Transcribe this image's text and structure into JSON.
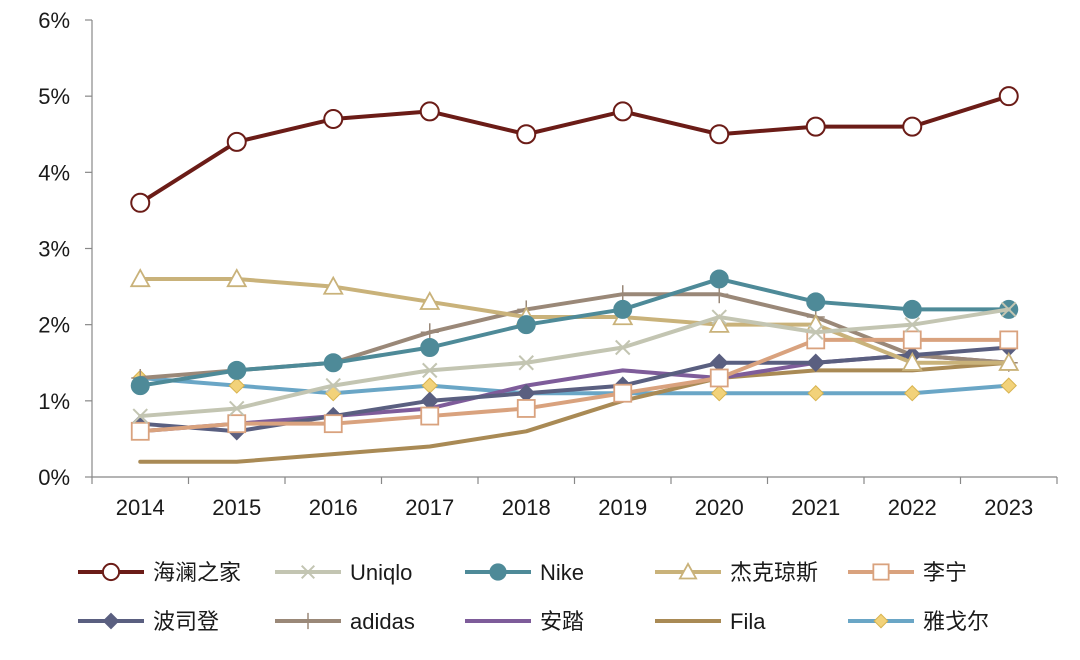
{
  "chart_data": {
    "type": "line",
    "title": "",
    "xlabel": "",
    "ylabel": "",
    "categories": [
      "2014",
      "2015",
      "2016",
      "2017",
      "2018",
      "2019",
      "2020",
      "2021",
      "2022",
      "2023"
    ],
    "y_ticks": [
      "0%",
      "1%",
      "2%",
      "3%",
      "4%",
      "5%",
      "6%"
    ],
    "ylim": [
      0,
      6
    ],
    "grid": false,
    "legend_position": "bottom",
    "series": [
      {
        "name": "海澜之家",
        "color": "#6b1c17",
        "marker": "circle-open",
        "values": [
          3.6,
          4.4,
          4.7,
          4.8,
          4.5,
          4.8,
          4.5,
          4.6,
          4.6,
          5.0
        ]
      },
      {
        "name": "Uniqlo",
        "color": "#c3c5b2",
        "marker": "x",
        "values": [
          0.8,
          0.9,
          1.2,
          1.4,
          1.5,
          1.7,
          2.1,
          1.9,
          2.0,
          2.2
        ]
      },
      {
        "name": "Nike",
        "color": "#4e8a98",
        "marker": "circle-filled",
        "values": [
          1.2,
          1.4,
          1.5,
          1.7,
          2.0,
          2.2,
          2.6,
          2.3,
          2.2,
          2.2
        ]
      },
      {
        "name": "杰克琼斯",
        "color": "#c9b27a",
        "marker": "triangle-open",
        "values": [
          2.6,
          2.6,
          2.5,
          2.3,
          2.1,
          2.1,
          2.0,
          2.0,
          1.5,
          1.5
        ]
      },
      {
        "name": "李宁",
        "color": "#d9a27e",
        "marker": "square-open",
        "values": [
          0.6,
          0.7,
          0.7,
          0.8,
          0.9,
          1.1,
          1.3,
          1.8,
          1.8,
          1.8
        ]
      },
      {
        "name": "波司登",
        "color": "#5a5f80",
        "marker": "diamond-filled",
        "values": [
          0.7,
          0.6,
          0.8,
          1.0,
          1.1,
          1.2,
          1.5,
          1.5,
          1.6,
          1.7
        ]
      },
      {
        "name": "adidas",
        "color": "#9a8878",
        "marker": "plus",
        "values": [
          1.3,
          1.4,
          1.5,
          1.9,
          2.2,
          2.4,
          2.4,
          2.1,
          1.6,
          1.5
        ]
      },
      {
        "name": "安踏",
        "color": "#7e5c9a",
        "marker": "none",
        "values": [
          0.6,
          0.7,
          0.8,
          0.9,
          1.2,
          1.4,
          1.3,
          1.5,
          1.6,
          1.5
        ]
      },
      {
        "name": "Fila",
        "color": "#a98a55",
        "marker": "none",
        "values": [
          0.2,
          0.2,
          0.3,
          0.4,
          0.6,
          1.0,
          1.3,
          1.4,
          1.4,
          1.5
        ]
      },
      {
        "name": "雅戈尔",
        "color": "#6aa6c6",
        "marker": "diamond-gold",
        "values": [
          1.3,
          1.2,
          1.1,
          1.2,
          1.1,
          1.1,
          1.1,
          1.1,
          1.1,
          1.2
        ]
      }
    ]
  }
}
